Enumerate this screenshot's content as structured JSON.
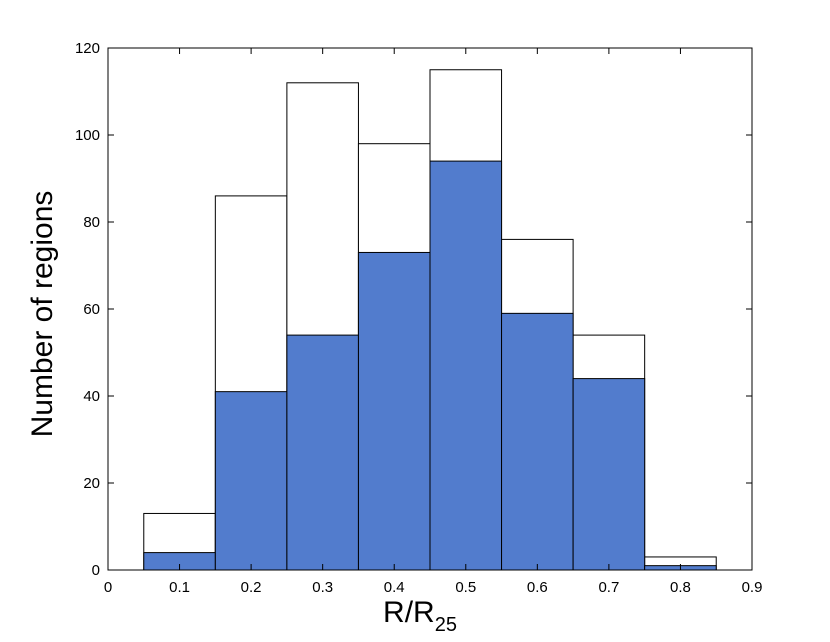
{
  "chart_data": {
    "type": "bar",
    "title": "",
    "xlabel_main": "R/R",
    "xlabel_sub": "25",
    "ylabel": "Number of regions",
    "xlim": [
      0,
      0.9
    ],
    "ylim": [
      0,
      120
    ],
    "xticks": [
      "0",
      "0.1",
      "0.2",
      "0.3",
      "0.4",
      "0.5",
      "0.6",
      "0.7",
      "0.8",
      "0.9"
    ],
    "yticks": [
      "0",
      "20",
      "40",
      "60",
      "80",
      "100",
      "120"
    ],
    "bin_width": 0.1,
    "bin_centers": [
      0.1,
      0.2,
      0.3,
      0.4,
      0.5,
      0.6,
      0.7,
      0.8
    ],
    "series": [
      {
        "values": [
          13,
          86,
          112,
          98,
          115,
          76,
          54,
          3
        ],
        "color": "#ffffff"
      },
      {
        "values": [
          4,
          41,
          54,
          73,
          94,
          59,
          44,
          1
        ],
        "color": "#527ccd"
      }
    ],
    "grid": false,
    "legend": "none"
  }
}
